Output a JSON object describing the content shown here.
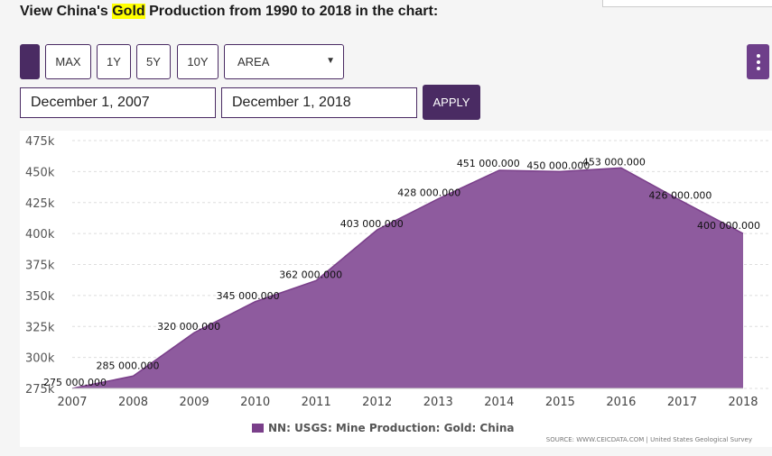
{
  "heading": {
    "prefix": "View China's ",
    "highlight": "Gold",
    "suffix": " Production from 1990 to 2018 in the chart:"
  },
  "controls": {
    "range_buttons": [
      "MAX",
      "1Y",
      "5Y",
      "10Y"
    ],
    "chart_type": "AREA",
    "caret": "▼",
    "start_date": "December 1, 2007",
    "end_date": "December 1, 2018",
    "apply_label": "APPLY"
  },
  "colors": {
    "accent": "#4a2b63",
    "area_fill": "#8e5b9e",
    "area_line": "#7a3f8a",
    "highlight": "#ffff00"
  },
  "legend_label": "NN: USGS: Mine Production: Gold: China",
  "source": "SOURCE: WWW.CEICDATA.COM | United States Geological Survey",
  "chart_data": {
    "type": "area",
    "title": "",
    "xlabel": "",
    "ylabel": "",
    "x": [
      2007,
      2008,
      2009,
      2010,
      2011,
      2012,
      2013,
      2014,
      2015,
      2016,
      2017,
      2018
    ],
    "series": [
      {
        "name": "NN: USGS: Mine Production: Gold: China",
        "values": [
          275000,
          285000,
          320000,
          345000,
          362000,
          403000,
          428000,
          451000,
          450000,
          453000,
          426000,
          400000
        ]
      }
    ],
    "data_labels": [
      "275 000.000",
      "285 000.000",
      "320 000.000",
      "345 000.000",
      "362 000.000",
      "403 000.000",
      "428 000.000",
      "451 000.000",
      "450 000.000",
      "453 000.000",
      "426 000.000",
      "400 000.000"
    ],
    "yticks": [
      275000,
      300000,
      325000,
      350000,
      375000,
      400000,
      425000,
      450000,
      475000
    ],
    "ytick_labels": [
      "275k",
      "300k",
      "325k",
      "350k",
      "375k",
      "400k",
      "425k",
      "450k",
      "475k"
    ],
    "xtick_labels": [
      "2007",
      "2008",
      "2009",
      "2010",
      "2011",
      "2012",
      "2013",
      "2014",
      "2015",
      "2016",
      "2017",
      "2018"
    ],
    "ylim": [
      275000,
      475000
    ],
    "xlim": [
      2007,
      2018
    ],
    "grid": "horizontal dashed",
    "legend": "bottom-center"
  }
}
